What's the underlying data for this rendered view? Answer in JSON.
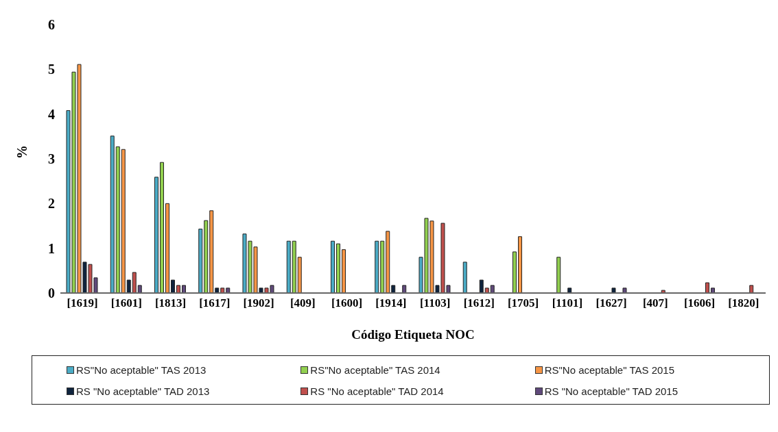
{
  "chart_data": {
    "type": "bar",
    "xlabel": "Código Etiqueta NOC",
    "ylabel": "%",
    "categories": [
      "[1619]",
      "[1601]",
      "[1813]",
      "[1617]",
      "[1902]",
      "[409]",
      "[1600]",
      "[1914]",
      "[1103]",
      "[1612]",
      "[1705]",
      "[1101]",
      "[1627]",
      "[407]",
      "[1606]",
      "[1820]"
    ],
    "series": [
      {
        "name": "RS\"No aceptable\" TAS 2013",
        "color": "#4bacc6",
        "values": [
          4.08,
          3.51,
          2.59,
          1.43,
          1.32,
          1.16,
          1.16,
          1.16,
          0.8,
          0.69,
          0,
          0,
          0,
          0,
          0,
          0
        ]
      },
      {
        "name": "RS\"No aceptable\" TAS 2014",
        "color": "#92d050",
        "values": [
          4.94,
          3.27,
          2.92,
          1.62,
          1.16,
          1.16,
          1.1,
          1.16,
          1.67,
          0,
          0.92,
          0.8,
          0,
          0,
          0,
          0
        ]
      },
      {
        "name": "RS\"No aceptable\" TAS 2015",
        "color": "#f79646",
        "values": [
          5.11,
          3.21,
          2.0,
          1.84,
          1.03,
          0.8,
          0.97,
          1.38,
          1.61,
          0,
          1.26,
          0,
          0,
          0,
          0,
          0
        ]
      },
      {
        "name": "RS \"No aceptable\" TAD 2013",
        "color": "#0f243e",
        "values": [
          0.69,
          0.29,
          0.29,
          0.11,
          0.11,
          0,
          0,
          0.17,
          0.17,
          0.29,
          0,
          0.11,
          0.11,
          0,
          0,
          0
        ]
      },
      {
        "name": "RS \"No aceptable\" TAD 2014",
        "color": "#c0504d",
        "values": [
          0.64,
          0.46,
          0.17,
          0.11,
          0.11,
          0,
          0,
          0,
          1.56,
          0.11,
          0,
          0,
          0,
          0.06,
          0.23,
          0.17
        ]
      },
      {
        "name": "RS \"No aceptable\" TAD 2015",
        "color": "#604a7b",
        "values": [
          0.34,
          0.17,
          0.17,
          0.11,
          0.17,
          0,
          0,
          0.17,
          0.17,
          0.17,
          0,
          0,
          0.11,
          0,
          0.11,
          0
        ]
      }
    ],
    "ylim": [
      0,
      6
    ],
    "yticks": [
      0,
      1,
      2,
      3,
      4,
      5,
      6
    ],
    "grid": false,
    "legend": "bottom"
  }
}
